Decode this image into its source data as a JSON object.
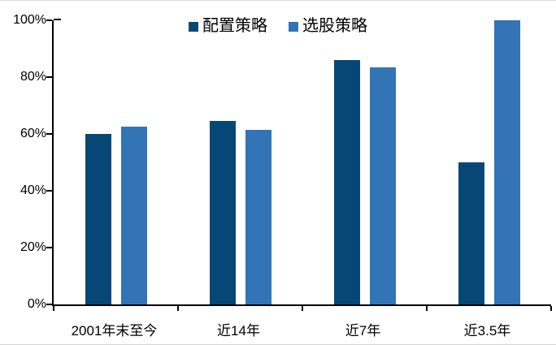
{
  "chart_data": {
    "type": "bar",
    "title": "",
    "categories": [
      "2001年末至今",
      "近14年",
      "近7年",
      "近3.5年"
    ],
    "series": [
      {
        "name": "配置策略",
        "color": "#074775",
        "values": [
          60,
          64.5,
          86,
          50
        ]
      },
      {
        "name": "选股策略",
        "color": "#3274b5",
        "values": [
          62.5,
          61.5,
          83.5,
          100
        ]
      }
    ],
    "xlabel": "",
    "ylabel": "",
    "ylim": [
      0,
      100
    ],
    "y_tick_values": [
      0,
      20,
      40,
      60,
      80,
      100
    ],
    "y_tick_labels": [
      "0%",
      "20%",
      "40%",
      "60%",
      "80%",
      "100%"
    ],
    "legend_position": "top-center",
    "grid": false
  },
  "colors": {
    "axis": "#000000",
    "background": "#ffffff",
    "series_1": "#074775",
    "series_2": "#3274b5"
  }
}
